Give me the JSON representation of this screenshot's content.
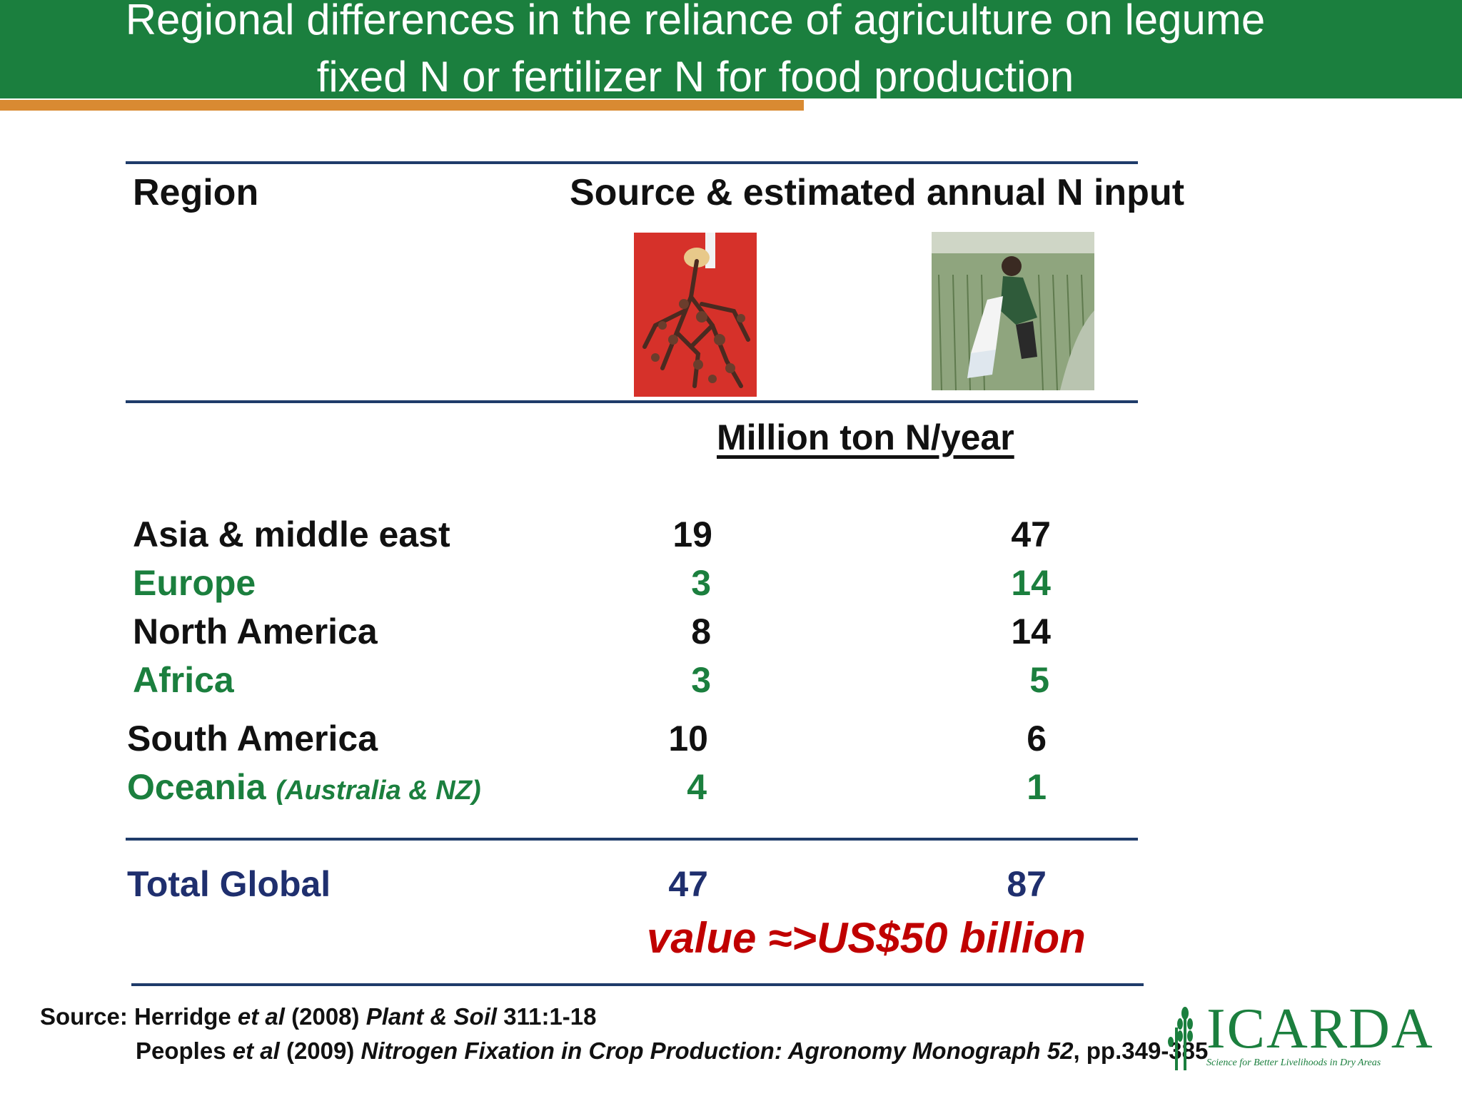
{
  "header": {
    "title_line1": "Regional differences in the reliance of agriculture on legume",
    "title_line2": "fixed N or fertilizer N for food production"
  },
  "table": {
    "col_region": "Region",
    "col_source": "Source & estimated annual N input",
    "units": "Million ton N/year",
    "rows": [
      {
        "region": "Asia & middle east",
        "sub": "",
        "legume": "19",
        "fertilizer": "47",
        "color": "#111111"
      },
      {
        "region": "Europe",
        "sub": "",
        "legume": "3",
        "fertilizer": "14",
        "color": "#1b7f3e"
      },
      {
        "region": "North America",
        "sub": "",
        "legume": "8",
        "fertilizer": "14",
        "color": "#111111"
      },
      {
        "region": "Africa",
        "sub": "",
        "legume": "3",
        "fertilizer": "5",
        "color": "#1b7f3e"
      },
      {
        "region": "South America",
        "sub": "",
        "legume": "10",
        "fertilizer": "6",
        "color": "#111111"
      },
      {
        "region": "Oceania",
        "sub": "(Australia & NZ)",
        "legume": "4",
        "fertilizer": "1",
        "color": "#1b7f3e"
      }
    ],
    "total": {
      "label": "Total Global",
      "legume": "47",
      "fertilizer": "87",
      "color": "#1f2f6e"
    },
    "value_note": "value ≈>US$50 billion"
  },
  "images": {
    "legume_photo": "legume root nodules photo",
    "fertilizer_photo": "farmer spreading fertilizer photo"
  },
  "source": {
    "prefix": "Source: ",
    "ref1_authors": "Herridge ",
    "ref1_etal": "et al",
    "ref1_year": " (2008) ",
    "ref1_journal": "Plant & Soil",
    "ref1_pages": " 311:1-18",
    "ref2_authors": "Peoples ",
    "ref2_etal": "et al",
    "ref2_year": " (2009) ",
    "ref2_journal": "Nitrogen Fixation in Crop Production: Agronomy Monograph 52",
    "ref2_pages": ", pp.349-385"
  },
  "logo": {
    "name": "ICARDA",
    "tagline": "Science for Better Livelihoods in Dry Areas"
  },
  "colors": {
    "header_green": "#1b7f3e",
    "accent_orange": "#d98a32",
    "rule_navy": "#1f3c6a",
    "total_navy": "#1f2f6e",
    "highlight_red": "#c00000"
  }
}
